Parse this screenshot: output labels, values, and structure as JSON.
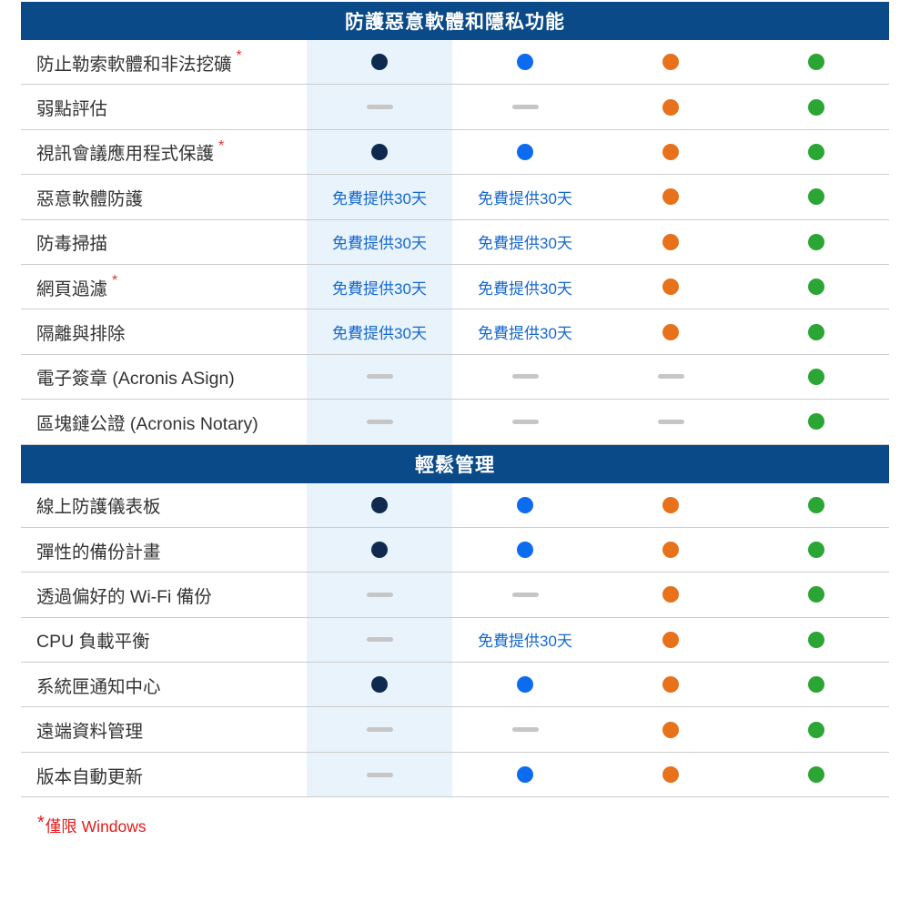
{
  "colors": {
    "header_bg": "#0a4a88",
    "column_highlight": "#e8f3fc",
    "navy": "#0e2b4f",
    "blue": "#0d6bf0",
    "orange": "#e8711c",
    "green": "#2ba534",
    "dash": "#c6c6c6",
    "trial_text": "#1668cf",
    "label_text": "#333333",
    "footnote_red": "#e51b1b",
    "divider": "#cccccc"
  },
  "trial_label": "免費提供30天",
  "asterisk": "*",
  "footnote": {
    "asterisk": "*",
    "text": "僅限 Windows"
  },
  "sections": [
    {
      "title": "防護惡意軟體和隱私功能",
      "rows": [
        {
          "feature": "防止勒索軟體和非法挖礦",
          "asterisk": true,
          "cells": [
            "navy",
            "blue",
            "orange",
            "green"
          ]
        },
        {
          "feature": "弱點評估",
          "asterisk": false,
          "cells": [
            "dash",
            "dash",
            "orange",
            "green"
          ]
        },
        {
          "feature": "視訊會議應用程式保護",
          "asterisk": true,
          "cells": [
            "navy",
            "blue",
            "orange",
            "green"
          ]
        },
        {
          "feature": "惡意軟體防護",
          "asterisk": false,
          "cells": [
            "trial",
            "trial",
            "orange",
            "green"
          ]
        },
        {
          "feature": "防毒掃描",
          "asterisk": false,
          "cells": [
            "trial",
            "trial",
            "orange",
            "green"
          ]
        },
        {
          "feature": "網頁過濾",
          "asterisk": true,
          "cells": [
            "trial",
            "trial",
            "orange",
            "green"
          ]
        },
        {
          "feature": "隔離與排除",
          "asterisk": false,
          "cells": [
            "trial",
            "trial",
            "orange",
            "green"
          ]
        },
        {
          "feature": "電子簽章 (Acronis ASign)",
          "asterisk": false,
          "cells": [
            "dash",
            "dash",
            "dash",
            "green"
          ]
        },
        {
          "feature": "區塊鏈公證 (Acronis Notary)",
          "asterisk": false,
          "cells": [
            "dash",
            "dash",
            "dash",
            "green"
          ]
        }
      ]
    },
    {
      "title": "輕鬆管理",
      "rows": [
        {
          "feature": "線上防護儀表板",
          "asterisk": false,
          "cells": [
            "navy",
            "blue",
            "orange",
            "green"
          ]
        },
        {
          "feature": "彈性的備份計畫",
          "asterisk": false,
          "cells": [
            "navy",
            "blue",
            "orange",
            "green"
          ]
        },
        {
          "feature": "透過偏好的 Wi-Fi 備份",
          "asterisk": false,
          "cells": [
            "dash",
            "dash",
            "orange",
            "green"
          ]
        },
        {
          "feature": "CPU 負載平衡",
          "asterisk": false,
          "cells": [
            "dash",
            "trial",
            "orange",
            "green"
          ]
        },
        {
          "feature": "系統匣通知中心",
          "asterisk": false,
          "cells": [
            "navy",
            "blue",
            "orange",
            "green"
          ]
        },
        {
          "feature": "遠端資料管理",
          "asterisk": false,
          "cells": [
            "dash",
            "dash",
            "orange",
            "green"
          ]
        },
        {
          "feature": "版本自動更新",
          "asterisk": false,
          "cells": [
            "dash",
            "blue",
            "orange",
            "green"
          ]
        }
      ]
    }
  ]
}
